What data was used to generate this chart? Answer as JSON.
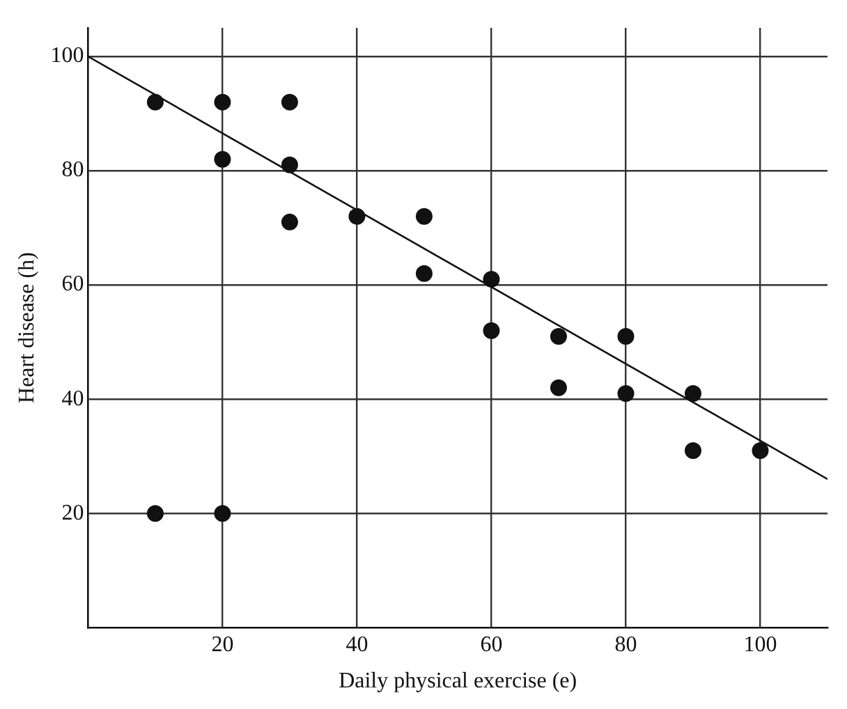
{
  "chart_data": {
    "type": "scatter",
    "xlabel": "Daily physical exercise (e)",
    "ylabel": "Heart disease (h)",
    "series": [
      {
        "marker": "circle",
        "color": "#111111",
        "x": [
          10,
          20,
          20,
          30,
          30,
          30,
          40,
          50,
          50,
          60,
          60,
          70,
          70,
          80,
          80,
          90,
          90,
          100,
          10,
          20
        ],
        "values": [
          92,
          92,
          82,
          92,
          81,
          71,
          72,
          72,
          62,
          61,
          52,
          51,
          42,
          51,
          41,
          41,
          31,
          31,
          20,
          20
        ]
      },
      {
        "type": "line",
        "color": "#111111",
        "x": [
          0,
          110
        ],
        "values": [
          100,
          26
        ]
      }
    ],
    "xlim": [
      0,
      110
    ],
    "ylim": [
      0,
      105
    ],
    "xticks": [
      20,
      40,
      60,
      80,
      100
    ],
    "yticks": [
      20,
      40,
      60,
      80,
      100
    ],
    "grid": true,
    "legend": false
  }
}
